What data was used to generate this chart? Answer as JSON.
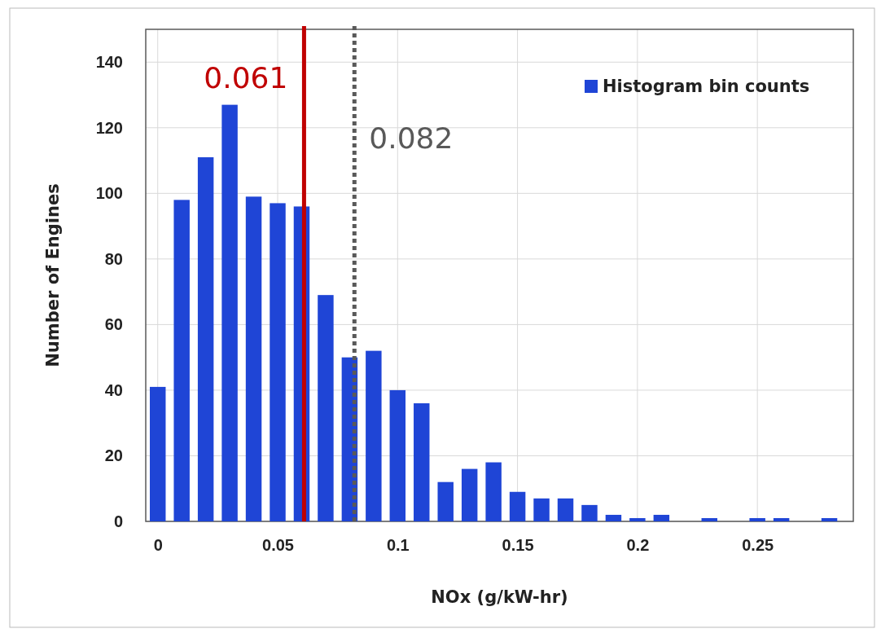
{
  "chart_data": {
    "type": "histogram",
    "xlabel": "NOx (g/kW-hr)",
    "ylabel": "Number of Engines",
    "bins": [
      -0.005,
      0.005,
      0.015,
      0.025,
      0.035,
      0.045,
      0.055,
      0.065,
      0.075,
      0.085,
      0.095,
      0.105,
      0.115,
      0.125,
      0.135,
      0.145,
      0.155,
      0.165,
      0.175,
      0.185,
      0.195,
      0.205,
      0.215,
      0.225,
      0.235,
      0.245,
      0.255,
      0.265,
      0.275,
      0.285
    ],
    "series": [
      {
        "name": "Histogram bin counts",
        "color": "#1f45d6",
        "values": [
          41,
          98,
          111,
          127,
          99,
          97,
          96,
          69,
          50,
          52,
          40,
          36,
          12,
          16,
          18,
          9,
          7,
          7,
          5,
          2,
          1,
          2,
          0,
          1,
          0,
          1,
          1,
          0,
          1
        ]
      }
    ],
    "xlim": [
      -0.005,
      0.29
    ],
    "xticks": [
      0,
      0.05,
      0.1,
      0.15,
      0.2,
      0.25
    ],
    "ylim": [
      0,
      150
    ],
    "yticks": [
      0,
      20,
      40,
      60,
      80,
      100,
      120,
      140
    ],
    "grid": true,
    "legend": "top right",
    "ref_lines": [
      {
        "axis": "x",
        "value": 0.061,
        "label": "0.061",
        "color": "#c00000",
        "line_style": "solid"
      },
      {
        "axis": "x",
        "value": 0.082,
        "label": "0.082",
        "color": "#595959",
        "line_style": "dotted"
      }
    ]
  }
}
